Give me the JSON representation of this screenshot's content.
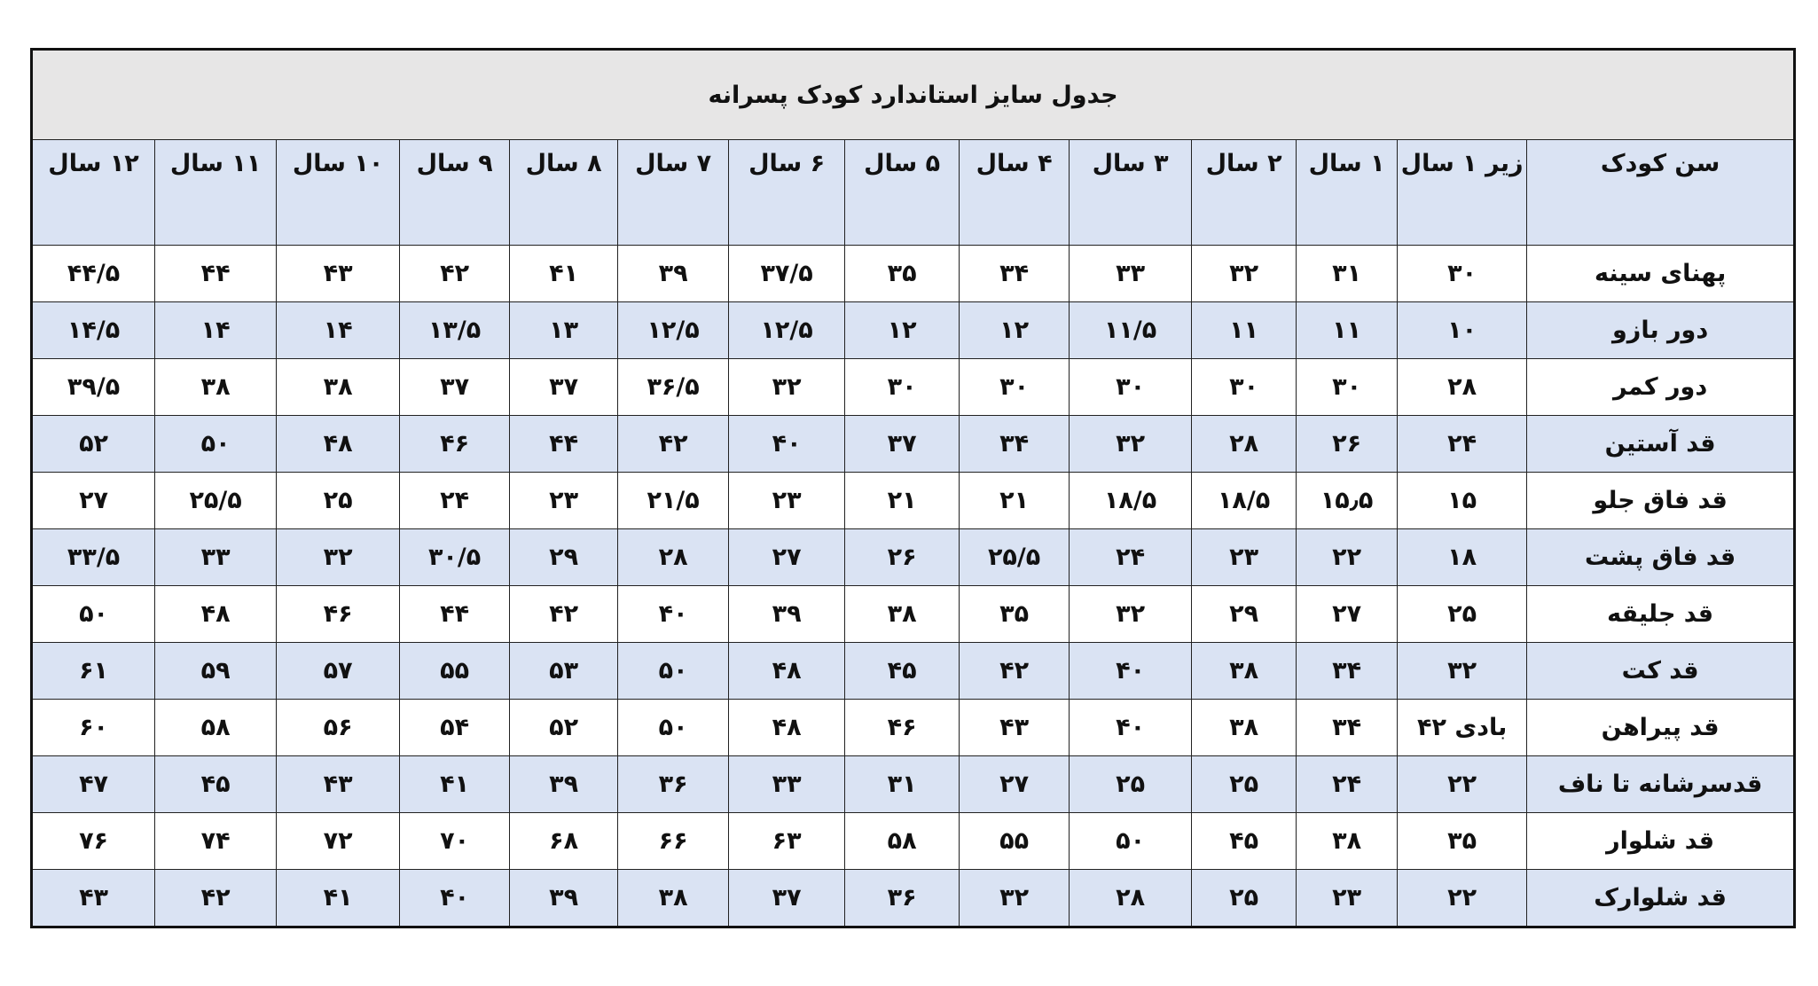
{
  "title": "جدول سایز استاندارد کودک پسرانه",
  "columns": [
    "سن کودک",
    "زیر ۱ سال",
    "۱ سال",
    "۲ سال",
    "۳ سال",
    "۴ سال",
    "۵ سال",
    "۶ سال",
    "۷ سال",
    "۸ سال",
    "۹ سال",
    "۱۰ سال",
    "۱۱ سال",
    "۱۲ سال"
  ],
  "colors": {
    "title_bg": "#e7e6e6",
    "header_bg": "#dae3f3",
    "alt_row_bg": "#dae3f3"
  },
  "rows": [
    {
      "label": "پهنای سینه",
      "values": [
        "۳۰",
        "۳۱",
        "۳۲",
        "۳۳",
        "۳۴",
        "۳۵",
        "۳۷/۵",
        "۳۹",
        "۴۱",
        "۴۲",
        "۴۳",
        "۴۴",
        "۴۴/۵"
      ]
    },
    {
      "label": "دور بازو",
      "values": [
        "۱۰",
        "۱۱",
        "۱۱",
        "۱۱/۵",
        "۱۲",
        "۱۲",
        "۱۲/۵",
        "۱۲/۵",
        "۱۳",
        "۱۳/۵",
        "۱۴",
        "۱۴",
        "۱۴/۵"
      ]
    },
    {
      "label": "دور کمر",
      "values": [
        "۲۸",
        "۳۰",
        "۳۰",
        "۳۰",
        "۳۰",
        "۳۰",
        "۳۲",
        "۳۶/۵",
        "۳۷",
        "۳۷",
        "۳۸",
        "۳۸",
        "۳۹/۵"
      ]
    },
    {
      "label": "قد آستین",
      "values": [
        "۲۴",
        "۲۶",
        "۲۸",
        "۳۲",
        "۳۴",
        "۳۷",
        "۴۰",
        "۴۲",
        "۴۴",
        "۴۶",
        "۴۸",
        "۵۰",
        "۵۲"
      ]
    },
    {
      "label": "قد فاق جلو",
      "values": [
        "۱۵",
        "۱۵٫۵",
        "۱۸/۵",
        "۱۸/۵",
        "۲۱",
        "۲۱",
        "۲۳",
        "۲۱/۵",
        "۲۳",
        "۲۴",
        "۲۵",
        "۲۵/۵",
        "۲۷"
      ]
    },
    {
      "label": "قد فاق پشت",
      "values": [
        "۱۸",
        "۲۲",
        "۲۳",
        "۲۴",
        "۲۵/۵",
        "۲۶",
        "۲۷",
        "۲۸",
        "۲۹",
        "۳۰/۵",
        "۳۲",
        "۳۳",
        "۳۳/۵"
      ]
    },
    {
      "label": "قد جلیقه",
      "values": [
        "۲۵",
        "۲۷",
        "۲۹",
        "۳۲",
        "۳۵",
        "۳۸",
        "۳۹",
        "۴۰",
        "۴۲",
        "۴۴",
        "۴۶",
        "۴۸",
        "۵۰"
      ]
    },
    {
      "label": "قد کت",
      "values": [
        "۳۲",
        "۳۴",
        "۳۸",
        "۴۰",
        "۴۲",
        "۴۵",
        "۴۸",
        "۵۰",
        "۵۳",
        "۵۵",
        "۵۷",
        "۵۹",
        "۶۱"
      ]
    },
    {
      "label": "قد پیراهن",
      "values": [
        "بادی ۴۲",
        "۳۴",
        "۳۸",
        "۴۰",
        "۴۳",
        "۴۶",
        "۴۸",
        "۵۰",
        "۵۲",
        "۵۴",
        "۵۶",
        "۵۸",
        "۶۰"
      ]
    },
    {
      "label": "قدسرشانه تا ناف",
      "values": [
        "۲۲",
        "۲۴",
        "۲۵",
        "۲۵",
        "۲۷",
        "۳۱",
        "۳۳",
        "۳۶",
        "۳۹",
        "۴۱",
        "۴۳",
        "۴۵",
        "۴۷"
      ]
    },
    {
      "label": "قد شلوار",
      "values": [
        "۳۵",
        "۳۸",
        "۴۵",
        "۵۰",
        "۵۵",
        "۵۸",
        "۶۳",
        "۶۶",
        "۶۸",
        "۷۰",
        "۷۲",
        "۷۴",
        "۷۶"
      ]
    },
    {
      "label": "قد شلوارک",
      "values": [
        "۲۲",
        "۲۳",
        "۲۵",
        "۲۸",
        "۳۲",
        "۳۶",
        "۳۷",
        "۳۸",
        "۳۹",
        "۴۰",
        "۴۱",
        "۴۲",
        "۴۳"
      ]
    }
  ]
}
